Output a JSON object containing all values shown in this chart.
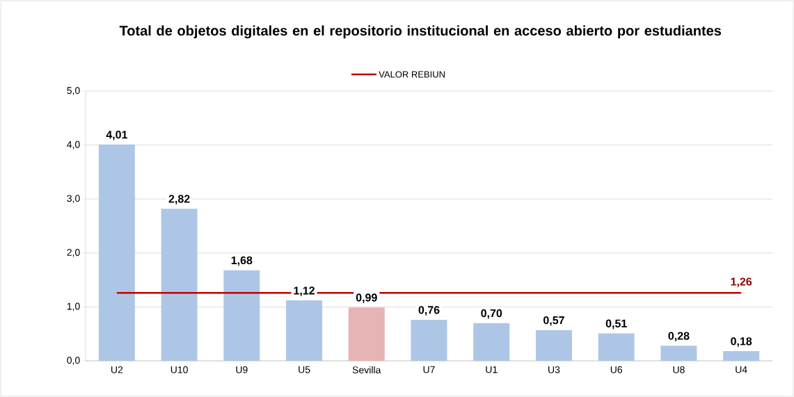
{
  "chart_data": {
    "type": "bar",
    "title": "Total de objetos digitales en el repositorio institucional en acceso abierto por estudiantes",
    "categories": [
      "U2",
      "U10",
      "U9",
      "U5",
      "Sevilla",
      "U7",
      "U1",
      "U3",
      "U6",
      "U8",
      "U4"
    ],
    "values": [
      4.01,
      2.82,
      1.68,
      1.12,
      0.99,
      0.76,
      0.7,
      0.57,
      0.51,
      0.28,
      0.18
    ],
    "colors": [
      "#aec6e6",
      "#aec6e6",
      "#aec6e6",
      "#aec6e6",
      "#e6b4b4",
      "#aec6e6",
      "#aec6e6",
      "#aec6e6",
      "#aec6e6",
      "#aec6e6",
      "#aec6e6"
    ],
    "value_labels": [
      "4,01",
      "2,82",
      "1,68",
      "1,12",
      "0,99",
      "0,76",
      "0,70",
      "0,57",
      "0,51",
      "0,28",
      "0,18"
    ],
    "ylim": [
      0,
      5
    ],
    "yticks": [
      {
        "value": 0,
        "label": "0,0"
      },
      {
        "value": 1,
        "label": "1,0"
      },
      {
        "value": 2,
        "label": "2,0"
      },
      {
        "value": 3,
        "label": "3,0"
      },
      {
        "value": 4,
        "label": "4,0"
      },
      {
        "value": 5,
        "label": "5,0"
      }
    ],
    "grid": "y",
    "legend": "top",
    "ref_lines": [
      {
        "axis": "y",
        "value": 1.26,
        "label": "VALOR REBIUN",
        "color": "#c00000"
      }
    ],
    "annotations": [
      {
        "text": "1,26",
        "x": "U4",
        "y": 1.26
      }
    ]
  }
}
